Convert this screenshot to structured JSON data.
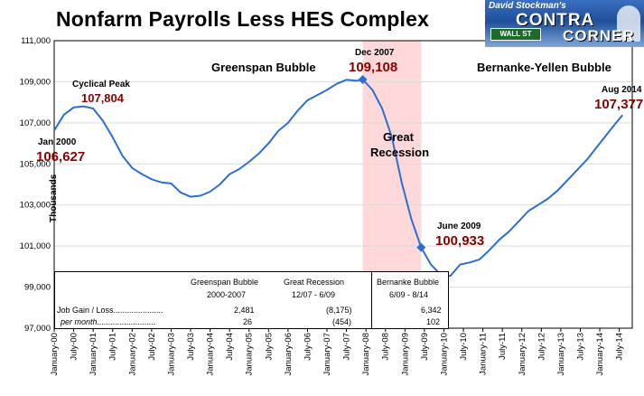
{
  "title": "Nonfarm Payrolls Less HES Complex",
  "logo": {
    "top_text": "David Stockman's",
    "line1": "CONTRA",
    "line2": "CORNER",
    "sign_text": "WALL ST"
  },
  "y_axis_title": "Thousands",
  "annotations": {
    "jan2000_label": "Jan 2000",
    "jan2000_value": "106,627",
    "cyclical_peak_label": "Cyclical Peak",
    "cyclical_peak_value": "107,804",
    "dec2007_label": "Dec 2007",
    "dec2007_value": "109,108",
    "june2009_label": "June 2009",
    "june2009_value": "100,933",
    "aug2014_label": "Aug 2014",
    "aug2014_value": "107,377",
    "greenspan_bubble": "Greenspan Bubble",
    "great_recession_line1": "Great",
    "great_recession_line2": "Recession",
    "bernanke_yellen_bubble": "Bernanke-Yellen Bubble"
  },
  "table": {
    "headers": [
      "Greenspan Bubble",
      "Great Recession",
      "Bernanke Bubble"
    ],
    "periods": [
      "2000-2007",
      "12/07 - 6/09",
      "6/09 - 8/14"
    ],
    "rows": [
      {
        "label": "Job Gain / Loss......................",
        "values": [
          "2,481",
          "(8,175)",
          "6,342"
        ]
      },
      {
        "label": "per month..........................",
        "values": [
          "26",
          "(454)",
          "102"
        ]
      }
    ]
  },
  "colors": {
    "line": "#2a6fd1",
    "recession_shade": "#ffd9d9",
    "marker": "#2a6fd1",
    "value_text": "#8b0000"
  },
  "chart_data": {
    "type": "line",
    "title": "Nonfarm Payrolls Less HES Complex",
    "ylabel": "Thousands",
    "xlabel": "",
    "ylim": [
      97000,
      111000
    ],
    "yticks": [
      "97,000",
      "99,000",
      "101,000",
      "103,000",
      "105,000",
      "107,000",
      "109,000",
      "111,000"
    ],
    "ytick_values": [
      97000,
      99000,
      101000,
      103000,
      105000,
      107000,
      109000,
      111000
    ],
    "xticks": [
      "January-00",
      "July-00",
      "January-01",
      "July-01",
      "January-02",
      "July-02",
      "January-03",
      "July-03",
      "January-04",
      "July-04",
      "January-05",
      "July-05",
      "January-06",
      "July-06",
      "January-07",
      "July-07",
      "January-08",
      "July-08",
      "January-09",
      "July-09",
      "January-10",
      "July-10",
      "January-11",
      "July-11",
      "January-12",
      "July-12",
      "January-13",
      "July-13",
      "January-14",
      "July-14"
    ],
    "x_start": "2000-01",
    "x_end": "2014-08",
    "recession_shade": {
      "from": "2007-12",
      "to": "2009-06"
    },
    "grid": true,
    "series": [
      {
        "x": [
          "2000-01",
          "2000-04",
          "2000-07",
          "2000-10",
          "2001-01",
          "2001-04",
          "2001-07",
          "2001-10",
          "2002-01",
          "2002-04",
          "2002-07",
          "2002-10",
          "2003-01",
          "2003-04",
          "2003-07",
          "2003-10",
          "2004-01",
          "2004-04",
          "2004-07",
          "2004-10",
          "2005-01",
          "2005-04",
          "2005-07",
          "2005-10",
          "2006-01",
          "2006-04",
          "2006-07",
          "2006-10",
          "2007-01",
          "2007-04",
          "2007-07",
          "2007-10",
          "2007-12",
          "2008-03",
          "2008-06",
          "2008-09",
          "2008-12",
          "2009-03",
          "2009-06",
          "2009-09",
          "2009-12",
          "2010-03",
          "2010-06",
          "2010-09",
          "2010-12",
          "2011-03",
          "2011-06",
          "2011-09",
          "2011-12",
          "2012-03",
          "2012-06",
          "2012-09",
          "2012-12",
          "2013-03",
          "2013-06",
          "2013-09",
          "2013-12",
          "2014-03",
          "2014-06",
          "2014-08"
        ],
        "values": [
          106627,
          107400,
          107750,
          107804,
          107700,
          107100,
          106300,
          105400,
          104800,
          104500,
          104250,
          104100,
          104050,
          103600,
          103400,
          103450,
          103650,
          104000,
          104500,
          104750,
          105100,
          105500,
          106000,
          106600,
          107000,
          107600,
          108100,
          108350,
          108600,
          108900,
          109100,
          109050,
          109108,
          108600,
          107700,
          106300,
          104100,
          102300,
          100933,
          100100,
          99600,
          99550,
          100100,
          100200,
          100350,
          100800,
          101300,
          101700,
          102200,
          102700,
          103000,
          103300,
          103700,
          104200,
          104700,
          105200,
          105800,
          106400,
          107000,
          107377
        ]
      }
    ],
    "points": [
      {
        "x": "2000-01",
        "y": 106627
      },
      {
        "x": "2000-10",
        "y": 107804
      },
      {
        "x": "2007-12",
        "y": 109108
      },
      {
        "x": "2009-06",
        "y": 100933
      },
      {
        "x": "2014-08",
        "y": 107377
      }
    ]
  }
}
